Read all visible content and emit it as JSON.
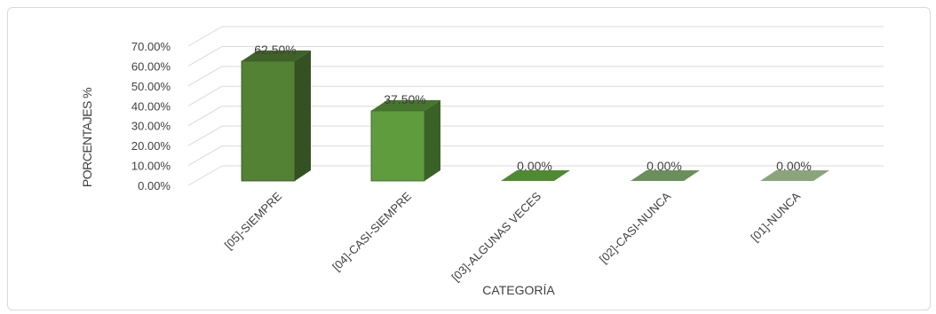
{
  "chart_data": {
    "type": "bar",
    "title": "",
    "xlabel": "CATEGORÍA",
    "ylabel": "PORCENTAJES %",
    "categories": [
      "[05]-SIEMPRE",
      "[04]-CASI-SIEMPRE",
      "[03]-ALGUNAS VECES",
      "[02]-CASI-NUNCA",
      "[01]-NUNCA"
    ],
    "values": [
      62.5,
      37.5,
      0,
      0,
      0
    ],
    "data_labels": [
      "62.50%",
      "37.50%",
      "0.00%",
      "0.00%",
      "0.00%"
    ],
    "ylim": [
      0,
      70
    ],
    "yticks": [
      0,
      10,
      20,
      30,
      40,
      50,
      60,
      70
    ],
    "ytick_labels": [
      "0.00%",
      "10.00%",
      "20.00%",
      "30.00%",
      "40.00%",
      "50.00%",
      "60.00%",
      "70.00%"
    ],
    "grid": true,
    "legend": "none",
    "style": "3d-column",
    "colors": {
      "bars": [
        "#548235",
        "#5e9c3e",
        "#4f8a32",
        "#6b8f5a",
        "#8aa57c"
      ],
      "grid": "#d9d9d9",
      "text": "#404040"
    }
  }
}
